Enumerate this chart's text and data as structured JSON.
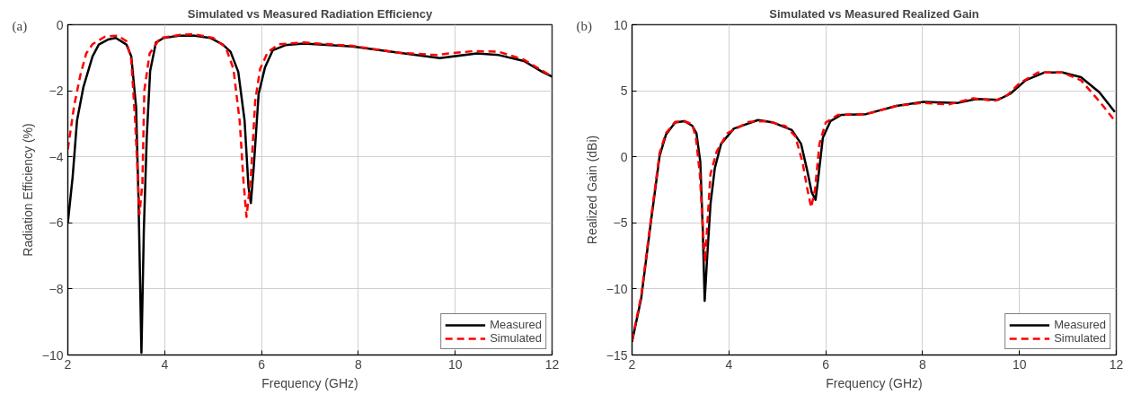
{
  "chart_data": [
    {
      "type": "line",
      "title": "Simulated vs Measured Radiation Efficiency",
      "xlabel": "Frequency (GHz)",
      "ylabel": "Radiation Efficiency (%)",
      "annotations": [
        "(a)"
      ],
      "xlim": [
        2,
        12
      ],
      "ylim": [
        -10,
        0
      ],
      "xticks": [
        2,
        4,
        6,
        8,
        10,
        12
      ],
      "yticks": [
        -10,
        -8,
        -6,
        -4,
        -2,
        0
      ],
      "grid": true,
      "legend": "bottom right",
      "series": [
        {
          "name": "Measured",
          "color": "#000000",
          "line_style": "solid",
          "x": [
            2.0,
            2.1,
            2.19,
            2.32,
            2.51,
            2.64,
            2.83,
            2.99,
            3.21,
            3.31,
            3.41,
            3.46,
            3.52,
            3.57,
            3.63,
            3.7,
            3.82,
            3.98,
            4.3,
            4.62,
            4.94,
            5.2,
            5.36,
            5.52,
            5.65,
            5.73,
            5.78,
            5.84,
            5.94,
            6.07,
            6.23,
            6.49,
            6.87,
            7.87,
            8.84,
            9.68,
            10.45,
            10.9,
            11.42,
            11.8,
            12.0
          ],
          "values": [
            -6.0,
            -4.6,
            -2.9,
            -1.9,
            -0.96,
            -0.6,
            -0.45,
            -0.4,
            -0.6,
            -0.96,
            -2.5,
            -5.3,
            -9.93,
            -6.2,
            -3.4,
            -1.4,
            -0.54,
            -0.4,
            -0.33,
            -0.33,
            -0.4,
            -0.6,
            -0.82,
            -1.43,
            -2.9,
            -4.9,
            -5.4,
            -4.3,
            -2.1,
            -1.3,
            -0.78,
            -0.62,
            -0.57,
            -0.66,
            -0.85,
            -1.01,
            -0.87,
            -0.92,
            -1.1,
            -1.43,
            -1.57
          ]
        },
        {
          "name": "Simulated",
          "color": "#ff0000",
          "line_style": "dashed",
          "x": [
            2.0,
            2.13,
            2.26,
            2.38,
            2.51,
            2.77,
            3.03,
            3.21,
            3.31,
            3.39,
            3.48,
            3.54,
            3.58,
            3.69,
            3.91,
            4.3,
            4.62,
            5.0,
            5.26,
            5.42,
            5.55,
            5.63,
            5.69,
            5.78,
            5.87,
            5.97,
            6.13,
            6.36,
            6.87,
            7.87,
            8.84,
            9.62,
            9.88,
            10.39,
            10.9,
            11.42,
            12.0
          ],
          "values": [
            -3.77,
            -2.46,
            -1.52,
            -0.87,
            -0.59,
            -0.36,
            -0.33,
            -0.5,
            -1.06,
            -2.9,
            -5.73,
            -4.8,
            -1.99,
            -0.87,
            -0.4,
            -0.31,
            -0.29,
            -0.4,
            -0.68,
            -1.34,
            -2.93,
            -4.8,
            -5.82,
            -4.6,
            -2.3,
            -1.34,
            -0.83,
            -0.59,
            -0.54,
            -0.64,
            -0.85,
            -0.92,
            -0.87,
            -0.8,
            -0.82,
            -1.06,
            -1.57
          ]
        }
      ]
    },
    {
      "type": "line",
      "title": "Simulated vs Measured Realized Gain",
      "xlabel": "Frequency (GHz)",
      "ylabel": "Realized Gain (dBi)",
      "annotations": [
        "(b)"
      ],
      "xlim": [
        2,
        12
      ],
      "ylim": [
        -15,
        10
      ],
      "xticks": [
        2,
        4,
        6,
        8,
        10,
        12
      ],
      "yticks": [
        -15,
        -10,
        -5,
        0,
        5,
        10
      ],
      "grid": true,
      "legend": "bottom right",
      "series": [
        {
          "name": "Measured",
          "color": "#000000",
          "line_style": "solid",
          "x": [
            2.0,
            2.19,
            2.38,
            2.57,
            2.7,
            2.89,
            3.08,
            3.24,
            3.33,
            3.41,
            3.46,
            3.5,
            3.55,
            3.62,
            3.71,
            3.84,
            4.1,
            4.6,
            4.92,
            5.3,
            5.49,
            5.62,
            5.71,
            5.79,
            5.84,
            5.94,
            6.1,
            6.32,
            6.83,
            7.46,
            8.0,
            8.73,
            9.11,
            9.56,
            9.81,
            10.13,
            10.51,
            10.89,
            11.27,
            11.65,
            11.97
          ],
          "values": [
            -14.0,
            -10.7,
            -5.2,
            0.07,
            1.67,
            2.59,
            2.7,
            2.36,
            1.79,
            -0.39,
            -5.4,
            -10.9,
            -7.7,
            -3.6,
            -0.85,
            0.99,
            2.13,
            2.78,
            2.59,
            2.02,
            0.99,
            -1.08,
            -2.68,
            -3.26,
            -1.77,
            1.44,
            2.71,
            3.17,
            3.23,
            3.85,
            4.15,
            4.08,
            4.38,
            4.31,
            4.77,
            5.8,
            6.38,
            6.38,
            6.03,
            4.89,
            3.39
          ]
        },
        {
          "name": "Simulated",
          "color": "#ff0000",
          "line_style": "dashed",
          "x": [
            2.0,
            2.19,
            2.38,
            2.57,
            2.7,
            2.89,
            3.08,
            3.24,
            3.32,
            3.4,
            3.47,
            3.51,
            3.55,
            3.62,
            3.75,
            3.97,
            4.41,
            4.79,
            5.17,
            5.37,
            5.52,
            5.62,
            5.7,
            5.78,
            5.87,
            6.0,
            6.25,
            6.83,
            7.46,
            8.0,
            8.54,
            9.05,
            9.49,
            9.75,
            10.0,
            10.38,
            10.89,
            11.27,
            11.65,
            12.0
          ],
          "values": [
            -13.9,
            -10.5,
            -5.0,
            0.3,
            1.79,
            2.64,
            2.7,
            2.48,
            1.44,
            -1.31,
            -5.9,
            -7.96,
            -5.4,
            -1.31,
            0.41,
            1.79,
            2.64,
            2.7,
            2.32,
            1.56,
            -0.39,
            -2.45,
            -3.83,
            -2.45,
            0.99,
            2.59,
            3.17,
            3.23,
            3.85,
            4.08,
            3.97,
            4.43,
            4.24,
            4.66,
            5.57,
            6.38,
            6.38,
            5.8,
            4.2,
            2.59
          ]
        }
      ]
    }
  ]
}
